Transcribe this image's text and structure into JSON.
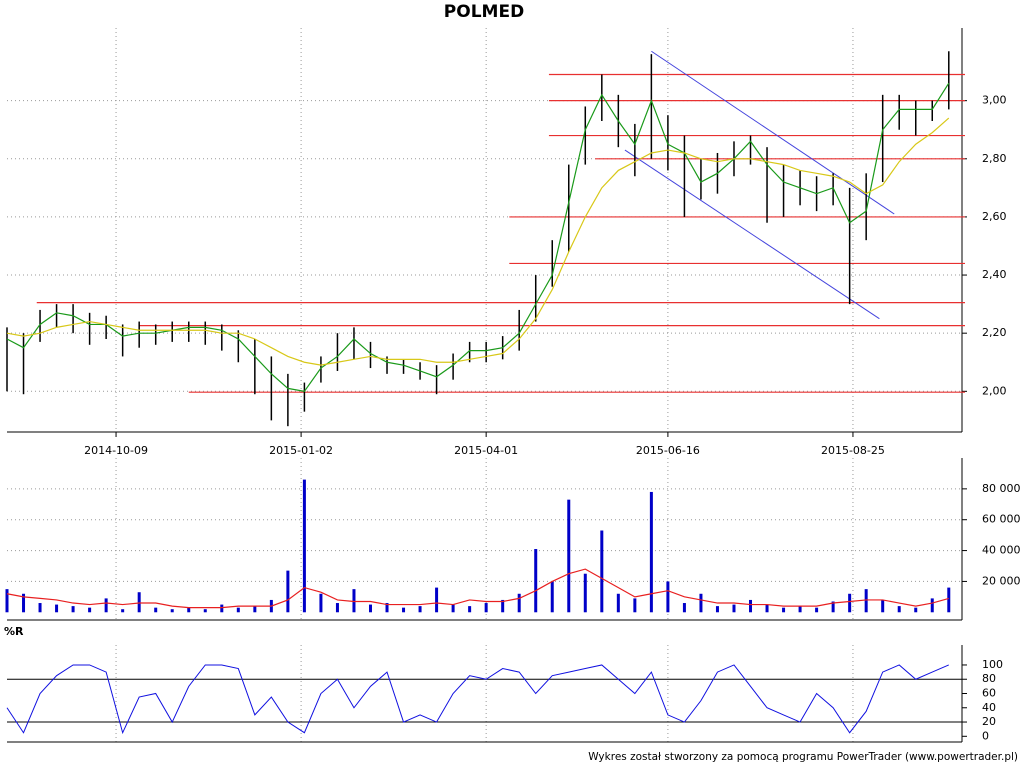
{
  "title": "POLMED",
  "footer": "Wykres został stworzony za pomocą programu PowerTrader (www.powertrader.pl)",
  "chart_data": [
    {
      "type": "price",
      "xlim": [
        0,
        289
      ],
      "xticks": [
        {
          "value": 33,
          "label": "2014-10-09"
        },
        {
          "value": 89,
          "label": "2015-01-02"
        },
        {
          "value": 145,
          "label": "2015-04-01"
        },
        {
          "value": 200,
          "label": "2015-06-16"
        },
        {
          "value": 256,
          "label": "2015-08-25"
        }
      ],
      "ylim": [
        1.86,
        3.25
      ],
      "yticks": [
        {
          "value": 2.0,
          "label": "2,00"
        },
        {
          "value": 2.2,
          "label": "2,20"
        },
        {
          "value": 2.4,
          "label": "2,40"
        },
        {
          "value": 2.6,
          "label": "2,60"
        },
        {
          "value": 2.8,
          "label": "2,80"
        },
        {
          "value": 3.0,
          "label": "3,00"
        }
      ],
      "grid": true,
      "x": [
        0,
        5,
        10,
        15,
        20,
        25,
        30,
        35,
        40,
        45,
        50,
        55,
        60,
        65,
        70,
        75,
        80,
        85,
        90,
        95,
        100,
        105,
        110,
        115,
        120,
        125,
        130,
        135,
        140,
        145,
        150,
        155,
        160,
        165,
        170,
        175,
        180,
        185,
        190,
        195,
        200,
        205,
        210,
        215,
        220,
        225,
        230,
        235,
        240,
        245,
        250,
        255,
        260,
        265,
        270,
        275,
        280,
        285
      ],
      "bars": {
        "color": "#000000",
        "high": [
          2.22,
          2.2,
          2.28,
          2.3,
          2.3,
          2.27,
          2.26,
          2.23,
          2.24,
          2.23,
          2.24,
          2.24,
          2.24,
          2.23,
          2.21,
          2.18,
          2.12,
          2.06,
          2.03,
          2.12,
          2.2,
          2.22,
          2.17,
          2.12,
          2.11,
          2.1,
          2.09,
          2.13,
          2.17,
          2.17,
          2.19,
          2.28,
          2.4,
          2.52,
          2.78,
          2.98,
          3.09,
          3.02,
          2.92,
          3.16,
          2.95,
          2.88,
          2.8,
          2.82,
          2.86,
          2.88,
          2.84,
          2.78,
          2.76,
          2.74,
          2.75,
          2.7,
          2.75,
          3.02,
          3.02,
          3.0,
          3.0,
          3.17
        ],
        "low": [
          2.0,
          1.99,
          2.17,
          2.22,
          2.2,
          2.16,
          2.18,
          2.12,
          2.15,
          2.16,
          2.17,
          2.17,
          2.16,
          2.14,
          2.1,
          1.99,
          1.9,
          1.88,
          1.93,
          2.03,
          2.07,
          2.11,
          2.08,
          2.06,
          2.06,
          2.04,
          1.99,
          2.04,
          2.1,
          2.1,
          2.11,
          2.14,
          2.24,
          2.36,
          2.48,
          2.78,
          2.93,
          2.84,
          2.74,
          2.8,
          2.76,
          2.6,
          2.66,
          2.68,
          2.74,
          2.78,
          2.58,
          2.6,
          2.64,
          2.62,
          2.64,
          2.3,
          2.52,
          2.72,
          2.9,
          2.88,
          2.93,
          2.97
        ]
      },
      "lines": [
        {
          "color": "#1a9a1a",
          "values": [
            2.18,
            2.15,
            2.23,
            2.27,
            2.26,
            2.23,
            2.23,
            2.19,
            2.2,
            2.2,
            2.21,
            2.22,
            2.22,
            2.21,
            2.18,
            2.12,
            2.06,
            2.01,
            2.0,
            2.08,
            2.12,
            2.18,
            2.13,
            2.1,
            2.09,
            2.07,
            2.05,
            2.09,
            2.14,
            2.14,
            2.15,
            2.2,
            2.3,
            2.4,
            2.65,
            2.9,
            3.02,
            2.93,
            2.85,
            3.0,
            2.85,
            2.82,
            2.72,
            2.75,
            2.8,
            2.86,
            2.78,
            2.72,
            2.7,
            2.68,
            2.7,
            2.58,
            2.62,
            2.9,
            2.97,
            2.97,
            2.97,
            3.06
          ]
        },
        {
          "color": "#d8c818",
          "values": [
            2.2,
            2.19,
            2.2,
            2.22,
            2.23,
            2.24,
            2.23,
            2.22,
            2.21,
            2.21,
            2.21,
            2.21,
            2.21,
            2.2,
            2.2,
            2.18,
            2.15,
            2.12,
            2.1,
            2.09,
            2.1,
            2.11,
            2.12,
            2.11,
            2.11,
            2.11,
            2.1,
            2.1,
            2.11,
            2.12,
            2.13,
            2.18,
            2.25,
            2.35,
            2.48,
            2.6,
            2.7,
            2.76,
            2.79,
            2.82,
            2.83,
            2.82,
            2.8,
            2.79,
            2.8,
            2.8,
            2.79,
            2.78,
            2.76,
            2.75,
            2.74,
            2.72,
            2.68,
            2.71,
            2.79,
            2.85,
            2.89,
            2.94
          ]
        }
      ],
      "levels": {
        "color": "#e83030",
        "values": [
          3.09,
          3.0,
          2.88,
          2.8,
          2.6,
          2.44,
          2.305,
          2.226,
          1.997
        ],
        "from": [
          164,
          164,
          164,
          178,
          152,
          152,
          9,
          40,
          55
        ]
      },
      "trendlines": {
        "color": "#4444dd",
        "x": [
          [
            195,
            268.5
          ],
          [
            187,
            264
          ]
        ],
        "values": [
          [
            3.17,
            2.61
          ],
          [
            2.83,
            2.25
          ]
        ]
      }
    },
    {
      "type": "volume",
      "xlim": [
        0,
        289
      ],
      "ylim": [
        -5000,
        100000
      ],
      "yticks": [
        {
          "value": 20000,
          "label": "20 000"
        },
        {
          "value": 40000,
          "label": "40 000"
        },
        {
          "value": 60000,
          "label": "60 000"
        },
        {
          "value": 80000,
          "label": "80 000"
        }
      ],
      "grid": true,
      "x": [
        0,
        5,
        10,
        15,
        20,
        25,
        30,
        35,
        40,
        45,
        50,
        55,
        60,
        65,
        70,
        75,
        80,
        85,
        90,
        95,
        100,
        105,
        110,
        115,
        120,
        125,
        130,
        135,
        140,
        145,
        150,
        155,
        160,
        165,
        170,
        175,
        180,
        185,
        190,
        195,
        200,
        205,
        210,
        215,
        220,
        225,
        230,
        235,
        240,
        245,
        250,
        255,
        260,
        265,
        270,
        275,
        280,
        285
      ],
      "color": "#0000c8",
      "values": [
        15000,
        12000,
        6000,
        5000,
        4000,
        3000,
        9000,
        2000,
        13000,
        3000,
        2000,
        3000,
        2000,
        5000,
        3000,
        4000,
        8000,
        27000,
        86000,
        12000,
        6000,
        15000,
        5000,
        6000,
        3000,
        4000,
        16000,
        5000,
        4000,
        6000,
        8000,
        12000,
        41000,
        20000,
        73000,
        25000,
        53000,
        12000,
        9000,
        78000,
        20000,
        6000,
        12000,
        4000,
        5000,
        8000,
        5000,
        3000,
        4000,
        3000,
        7000,
        12000,
        15000,
        8000,
        4000,
        3000,
        9000,
        16000
      ],
      "average": {
        "color": "#e82020",
        "values": [
          12000,
          10000,
          9000,
          8000,
          6000,
          5000,
          6000,
          5000,
          6000,
          6000,
          4000,
          3000,
          3000,
          3000,
          4000,
          4000,
          4000,
          8000,
          16000,
          13000,
          8000,
          7000,
          7000,
          5000,
          5000,
          5000,
          6000,
          5000,
          8000,
          7000,
          7000,
          9000,
          14000,
          20000,
          25000,
          28000,
          22000,
          16000,
          10000,
          12000,
          14000,
          10000,
          8000,
          6000,
          6000,
          5000,
          5000,
          4000,
          4000,
          4000,
          6000,
          7000,
          8000,
          8000,
          6000,
          4000,
          6000,
          9000
        ]
      }
    },
    {
      "type": "oscillator",
      "title": "%R",
      "xlim": [
        0,
        289
      ],
      "ylim": [
        -8,
        128
      ],
      "yticks": [
        0,
        20,
        40,
        60,
        80,
        100
      ],
      "bands": [
        20,
        80
      ],
      "grid": true,
      "x": [
        0,
        5,
        10,
        15,
        20,
        25,
        30,
        35,
        40,
        45,
        50,
        55,
        60,
        65,
        70,
        75,
        80,
        85,
        90,
        95,
        100,
        105,
        110,
        115,
        120,
        125,
        130,
        135,
        140,
        145,
        150,
        155,
        160,
        165,
        170,
        175,
        180,
        185,
        190,
        195,
        200,
        205,
        210,
        215,
        220,
        225,
        230,
        235,
        240,
        245,
        250,
        255,
        260,
        265,
        270,
        275,
        280,
        285
      ],
      "color": "#1010e0",
      "values": [
        40,
        5,
        60,
        85,
        100,
        100,
        90,
        5,
        55,
        60,
        20,
        70,
        100,
        100,
        95,
        30,
        55,
        20,
        5,
        60,
        80,
        40,
        70,
        90,
        20,
        30,
        20,
        60,
        85,
        80,
        95,
        90,
        60,
        85,
        90,
        95,
        100,
        80,
        60,
        90,
        30,
        20,
        50,
        90,
        100,
        70,
        40,
        30,
        20,
        60,
        40,
        5,
        35,
        90,
        100,
        80,
        90,
        100
      ]
    }
  ]
}
